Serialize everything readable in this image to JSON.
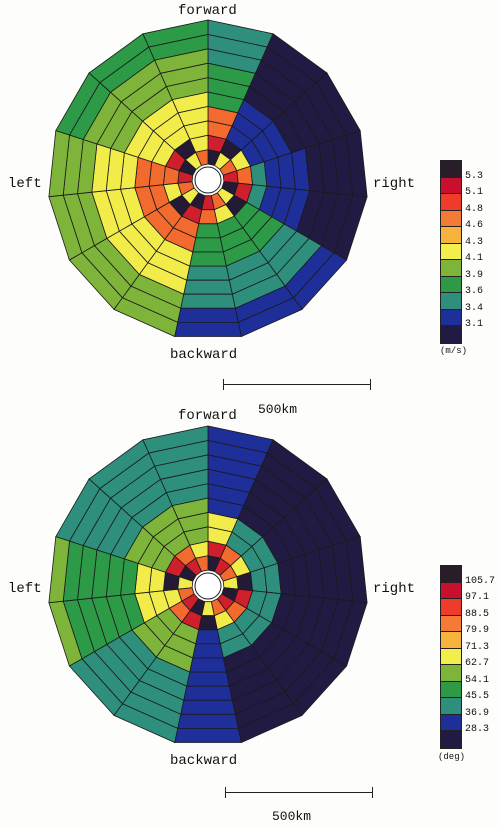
{
  "panels": [
    {
      "labels": {
        "forward": "forward",
        "backward": "backward",
        "left": "left",
        "right": "right"
      },
      "unit": "(m/s)",
      "scale_label": "500km",
      "colorbar": {
        "ticks": [
          "5.3",
          "5.1",
          "4.8",
          "4.6",
          "4.3",
          "4.1",
          "3.9",
          "3.6",
          "3.4",
          "3.1"
        ],
        "colors": [
          "#2b1c2a",
          "#c8102e",
          "#ef3b2c",
          "#f47a35",
          "#f6b23a",
          "#f2ee4c",
          "#7fb43a",
          "#2f9a45",
          "#2e8f7d",
          "#1f2f9a",
          "#211b44"
        ]
      }
    },
    {
      "labels": {
        "forward": "forward",
        "backward": "backward",
        "left": "left",
        "right": "right"
      },
      "unit": "(deg)",
      "scale_label": "500km",
      "colorbar": {
        "ticks": [
          "105.7",
          "97.1",
          "88.5",
          "79.9",
          "71.3",
          "62.7",
          "54.1",
          "45.5",
          "36.9",
          "28.3"
        ],
        "colors": [
          "#2b1c2a",
          "#c8102e",
          "#ef3b2c",
          "#f47a35",
          "#f6b23a",
          "#f2ee4c",
          "#7fb43a",
          "#2f9a45",
          "#2e8f7d",
          "#1f2f9a",
          "#211b44"
        ]
      }
    }
  ]
}
